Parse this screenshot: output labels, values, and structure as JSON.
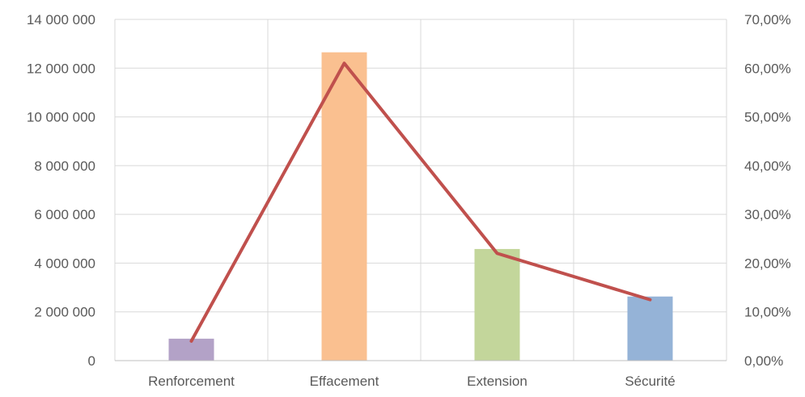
{
  "chart_data": {
    "type": "bar",
    "title": "",
    "categories": [
      "Renforcement",
      "Effacement",
      "Extension",
      "Sécurité"
    ],
    "series": [
      {
        "type": "bar",
        "axis": "left",
        "values": [
          900000,
          12650000,
          4580000,
          2630000
        ],
        "colors": [
          "#b3a2c7",
          "#fac090",
          "#c3d69b",
          "#95b3d7"
        ]
      },
      {
        "type": "line",
        "axis": "right",
        "values": [
          0.04,
          0.61,
          0.22,
          0.125
        ],
        "color": "#c0504d"
      }
    ],
    "y_left": {
      "ylim": [
        0,
        14000000
      ],
      "ticks": [
        0,
        2000000,
        4000000,
        6000000,
        8000000,
        10000000,
        12000000,
        14000000
      ],
      "tick_labels": [
        "0",
        "2 000 000",
        "4 000 000",
        "6 000 000",
        "8 000 000",
        "10 000 000",
        "12 000 000",
        "14 000 000"
      ]
    },
    "y_right": {
      "ylim": [
        0,
        0.7
      ],
      "ticks": [
        0,
        0.1,
        0.2,
        0.3,
        0.4,
        0.5,
        0.6,
        0.7
      ],
      "tick_labels": [
        "0,00%",
        "10,00%",
        "20,00%",
        "30,00%",
        "40,00%",
        "50,00%",
        "60,00%",
        "70,00%"
      ]
    },
    "grid": true,
    "legend": "none"
  }
}
